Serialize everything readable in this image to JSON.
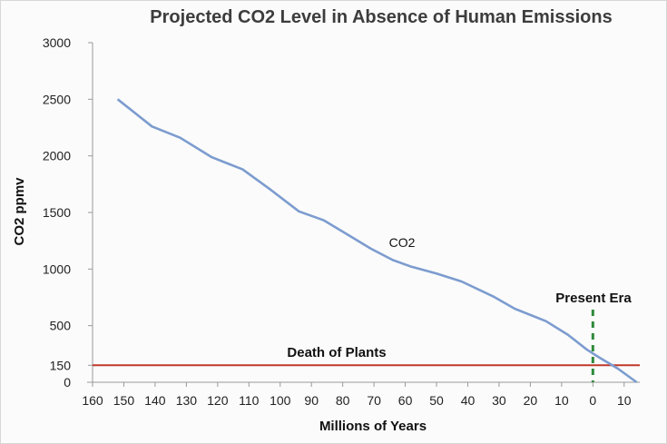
{
  "chart_data": {
    "type": "line",
    "title": "Projected CO2 Level in Absence of Human Emissions",
    "xlabel": "Millions of Years",
    "ylabel": "CO2 ppmv",
    "xlim": [
      160,
      -15
    ],
    "ylim": [
      0,
      3000
    ],
    "x_ticks": [
      "160",
      "150",
      "140",
      "130",
      "120",
      "110",
      "100",
      "90",
      "80",
      "70",
      "60",
      "50",
      "40",
      "30",
      "20",
      "10",
      "0",
      "10"
    ],
    "y_ticks": [
      "3000",
      "2500",
      "2000",
      "1500",
      "1000",
      "500",
      "150",
      "0"
    ],
    "y_tick_values": [
      3000,
      2500,
      2000,
      1500,
      1000,
      500,
      150,
      0
    ],
    "grid": false,
    "series": [
      {
        "name": "CO2",
        "color": "#7c9ccf",
        "x": [
          152,
          141,
          132,
          122,
          112,
          103,
          94,
          86,
          77,
          71,
          64,
          58,
          50,
          42,
          32,
          25,
          15,
          8,
          2,
          -2,
          -8,
          -14
        ],
        "y": [
          2500,
          2260,
          2160,
          1990,
          1880,
          1700,
          1510,
          1430,
          1280,
          1180,
          1080,
          1020,
          960,
          890,
          760,
          650,
          540,
          420,
          290,
          220,
          120,
          0
        ]
      }
    ],
    "annotations": {
      "series_label": "CO2",
      "present_era": {
        "label": "Present Era",
        "x": 0,
        "color": "#2f8a3a"
      },
      "death_of_plants": {
        "label": "Death of Plants",
        "y": 150,
        "color": "#c0392b"
      }
    }
  }
}
